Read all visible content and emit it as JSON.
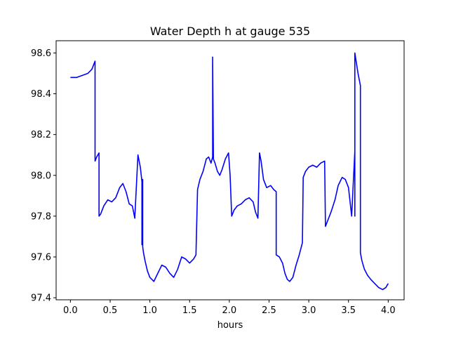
{
  "chart_data": {
    "type": "line",
    "title": "Water Depth h at gauge 535",
    "xlabel": "hours",
    "ylabel": "",
    "xlim": [
      -0.18,
      4.2
    ],
    "ylim": [
      97.39,
      98.66
    ],
    "xticks": [
      0.0,
      0.5,
      1.0,
      1.5,
      2.0,
      2.5,
      3.0,
      3.5,
      4.0
    ],
    "xtick_labels": [
      "0.0",
      "0.5",
      "1.0",
      "1.5",
      "2.0",
      "2.5",
      "3.0",
      "3.5",
      "4.0"
    ],
    "yticks": [
      97.4,
      97.6,
      97.8,
      98.0,
      98.2,
      98.4,
      98.6
    ],
    "ytick_labels": [
      "97.4",
      "97.6",
      "97.8",
      "98.0",
      "98.2",
      "98.4",
      "98.6"
    ],
    "grid": false,
    "series": [
      {
        "color": "#0000ff",
        "x": [
          0.0,
          0.08,
          0.15,
          0.22,
          0.27,
          0.31,
          0.31,
          0.33,
          0.36,
          0.36,
          0.38,
          0.42,
          0.47,
          0.52,
          0.57,
          0.62,
          0.66,
          0.7,
          0.74,
          0.78,
          0.81,
          0.85,
          0.85,
          0.88,
          0.9,
          0.9,
          0.91,
          0.91,
          0.92,
          0.94,
          0.97,
          1.0,
          1.05,
          1.1,
          1.15,
          1.2,
          1.25,
          1.3,
          1.35,
          1.4,
          1.45,
          1.5,
          1.55,
          1.58,
          1.6,
          1.6,
          1.63,
          1.67,
          1.71,
          1.74,
          1.77,
          1.79,
          1.79,
          1.8,
          1.8,
          1.82,
          1.85,
          1.88,
          1.91,
          1.95,
          1.99,
          2.01,
          2.03,
          2.03,
          2.06,
          2.1,
          2.15,
          2.2,
          2.25,
          2.3,
          2.33,
          2.36,
          2.38,
          2.38,
          2.4,
          2.43,
          2.47,
          2.52,
          2.56,
          2.59,
          2.59,
          2.63,
          2.67,
          2.7,
          2.73,
          2.76,
          2.8,
          2.84,
          2.88,
          2.92,
          2.93,
          2.93,
          2.96,
          3.0,
          3.05,
          3.1,
          3.15,
          3.2,
          3.21,
          3.21,
          3.24,
          3.28,
          3.33,
          3.37,
          3.42,
          3.46,
          3.5,
          3.54,
          3.58,
          3.58,
          3.58,
          3.62,
          3.65,
          3.65,
          3.67,
          3.7,
          3.74,
          3.78,
          3.83,
          3.88,
          3.93,
          3.97,
          4.0
        ],
        "y": [
          98.48,
          98.48,
          98.49,
          98.5,
          98.52,
          98.56,
          98.07,
          98.09,
          98.11,
          97.8,
          97.81,
          97.85,
          97.88,
          97.87,
          97.89,
          97.94,
          97.96,
          97.92,
          97.86,
          97.85,
          97.79,
          98.1,
          98.1,
          98.04,
          97.97,
          97.66,
          97.98,
          97.65,
          97.62,
          97.58,
          97.53,
          97.5,
          97.48,
          97.52,
          97.56,
          97.55,
          97.52,
          97.5,
          97.54,
          97.6,
          97.59,
          97.57,
          97.59,
          97.61,
          97.93,
          97.93,
          97.98,
          98.02,
          98.08,
          98.09,
          98.06,
          98.09,
          98.58,
          98.08,
          98.08,
          98.06,
          98.02,
          98.0,
          98.03,
          98.08,
          98.11,
          98.0,
          97.8,
          97.8,
          97.83,
          97.85,
          97.86,
          97.88,
          97.89,
          97.87,
          97.82,
          97.79,
          98.11,
          98.11,
          98.07,
          97.98,
          97.94,
          97.95,
          97.93,
          97.92,
          97.61,
          97.6,
          97.57,
          97.52,
          97.49,
          97.48,
          97.5,
          97.56,
          97.61,
          97.67,
          97.99,
          97.99,
          98.02,
          98.04,
          98.05,
          98.04,
          98.06,
          98.07,
          97.75,
          97.75,
          97.78,
          97.82,
          97.88,
          97.95,
          97.99,
          97.98,
          97.94,
          97.8,
          98.12,
          97.8,
          98.6,
          98.5,
          98.44,
          97.62,
          97.58,
          97.54,
          97.51,
          97.49,
          97.47,
          97.45,
          97.44,
          97.45,
          97.47
        ]
      }
    ]
  }
}
